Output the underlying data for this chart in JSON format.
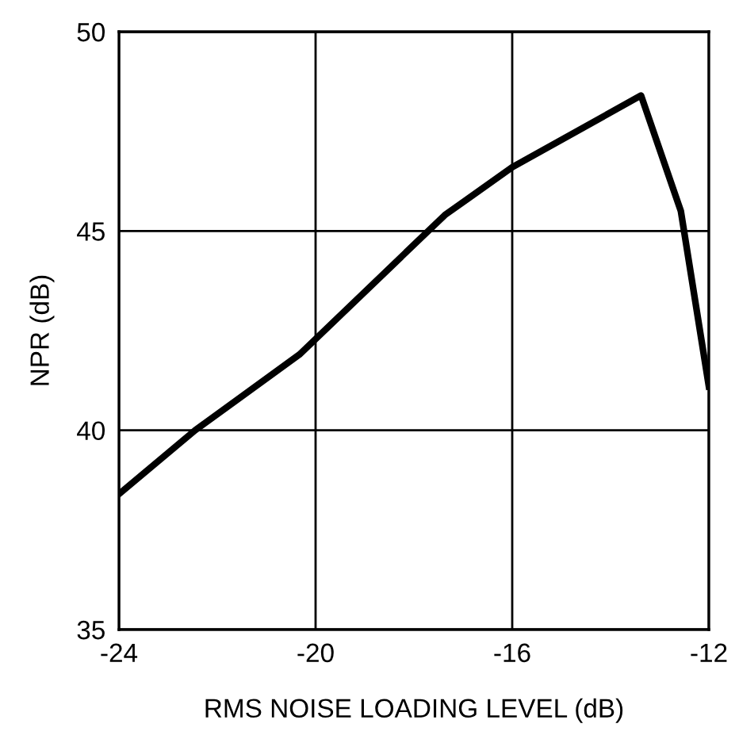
{
  "chart_data": {
    "type": "line",
    "xlabel": "RMS NOISE LOADING LEVEL (dB)",
    "ylabel": "NPR (dB)",
    "x": [
      -24,
      -22.45,
      -20.33,
      -17.37,
      -16,
      -13.38,
      -12.57,
      -12
    ],
    "series": [
      {
        "color": "#000000",
        "values": [
          38.4,
          40.0,
          41.9,
          45.4,
          46.6,
          48.4,
          45.5,
          41.1
        ]
      }
    ],
    "xlim": [
      -24,
      -12
    ],
    "xticks": [
      -24,
      -20,
      -16,
      -12
    ],
    "ylim": [
      35,
      50
    ],
    "yticks": [
      35,
      40,
      45,
      50
    ],
    "grid": true
  }
}
